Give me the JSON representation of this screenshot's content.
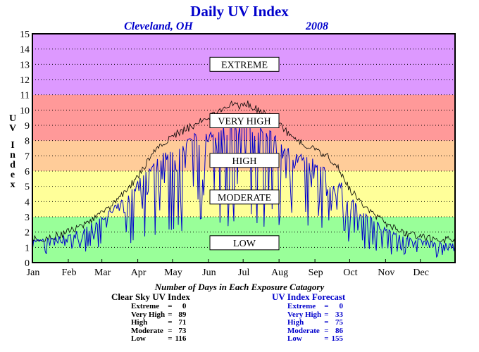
{
  "chart_data": {
    "type": "line",
    "title": "Daily UV Index",
    "location": "Cleveland, OH",
    "year": "2008",
    "ylabel": "UV Index",
    "ylim": [
      0,
      15
    ],
    "yticks": [
      "0",
      "1",
      "2",
      "3",
      "4",
      "5",
      "6",
      "7",
      "8",
      "9",
      "10",
      "11",
      "12",
      "13",
      "14",
      "15"
    ],
    "xlim": [
      1,
      366
    ],
    "xticks": [
      {
        "label": "Jan",
        "day": 1
      },
      {
        "label": "Feb",
        "day": 32
      },
      {
        "label": "Mar",
        "day": 61
      },
      {
        "label": "Apr",
        "day": 92
      },
      {
        "label": "May",
        "day": 122
      },
      {
        "label": "Jun",
        "day": 153
      },
      {
        "label": "Jul",
        "day": 183
      },
      {
        "label": "Aug",
        "day": 214
      },
      {
        "label": "Sep",
        "day": 245
      },
      {
        "label": "Oct",
        "day": 275
      },
      {
        "label": "Nov",
        "day": 306
      },
      {
        "label": "Dec",
        "day": 336
      }
    ],
    "grid": true,
    "bands": [
      {
        "name": "LOW",
        "from": 0,
        "to": 3,
        "color": "#99ff99"
      },
      {
        "name": "MODERATE",
        "from": 3,
        "to": 6,
        "color": "#ffff99"
      },
      {
        "name": "HIGH",
        "from": 6,
        "to": 8,
        "color": "#ffcc99"
      },
      {
        "name": "VERY HIGH",
        "from": 8,
        "to": 11,
        "color": "#ff9999"
      },
      {
        "name": "EXTREME",
        "from": 11,
        "to": 15,
        "color": "#dd99ff"
      }
    ],
    "series": [
      {
        "name": "Clear Sky UV Index",
        "color": "#000000",
        "x": [
          1,
          10,
          20,
          32,
          45,
          61,
          75,
          92,
          100,
          107,
          122,
          130,
          140,
          153,
          160,
          165,
          172,
          180,
          185,
          190,
          200,
          207,
          214,
          225,
          235,
          245,
          255,
          262,
          270,
          275,
          285,
          295,
          306,
          315,
          320,
          336,
          350,
          366
        ],
        "y": [
          1.5,
          1.6,
          1.7,
          2.0,
          2.5,
          3.2,
          4.2,
          5.6,
          6.6,
          7.5,
          8.3,
          8.6,
          9.0,
          9.5,
          9.8,
          10.2,
          10.4,
          10.3,
          10.5,
          10.2,
          9.9,
          9.6,
          9.0,
          8.3,
          7.8,
          7.4,
          7.0,
          6.6,
          5.6,
          4.8,
          4.0,
          3.2,
          2.6,
          2.2,
          2.0,
          1.7,
          1.5,
          1.5
        ]
      },
      {
        "name": "UV Index Forecast",
        "color": "#0000cc",
        "x": [
          1,
          10,
          20,
          32,
          45,
          61,
          75,
          92,
          100,
          107,
          122,
          130,
          140,
          153,
          160,
          165,
          172,
          180,
          185,
          190,
          200,
          207,
          214,
          225,
          235,
          245,
          255,
          262,
          270,
          275,
          285,
          295,
          306,
          315,
          320,
          336,
          350,
          366
        ],
        "y": [
          1.4,
          1.5,
          1.6,
          1.8,
          2.2,
          2.9,
          3.8,
          5.2,
          6.1,
          6.8,
          7.5,
          7.8,
          8.2,
          8.6,
          8.8,
          9.0,
          9.1,
          9.0,
          9.2,
          8.9,
          8.7,
          8.4,
          7.9,
          7.3,
          6.9,
          6.5,
          6.2,
          5.8,
          5.0,
          4.2,
          3.5,
          2.8,
          2.2,
          1.9,
          1.7,
          1.5,
          1.3,
          1.3
        ]
      }
    ],
    "category_labels": [
      "EXTREME",
      "VERY HIGH",
      "HIGH",
      "MODERATE",
      "LOW"
    ],
    "summary_title": "Number of Days in Each Exposure Catagory",
    "clear_sky": {
      "title": "Clear Sky UV Index",
      "rows": [
        {
          "label": "Extreme",
          "eq": "=",
          "value": "0"
        },
        {
          "label": "Very High",
          "eq": "=",
          "value": "89"
        },
        {
          "label": "High",
          "eq": "=",
          "value": "71"
        },
        {
          "label": "Moderate",
          "eq": "=",
          "value": "73"
        },
        {
          "label": "Low",
          "eq": "=",
          "value": "116"
        }
      ]
    },
    "forecast": {
      "title": "UV Index Forecast",
      "rows": [
        {
          "label": "Extreme",
          "eq": "=",
          "value": "0"
        },
        {
          "label": "Very High",
          "eq": "=",
          "value": "33"
        },
        {
          "label": "High",
          "eq": "=",
          "value": "75"
        },
        {
          "label": "Moderate",
          "eq": "=",
          "value": "86"
        },
        {
          "label": "Low",
          "eq": "=",
          "value": "155"
        }
      ]
    }
  }
}
